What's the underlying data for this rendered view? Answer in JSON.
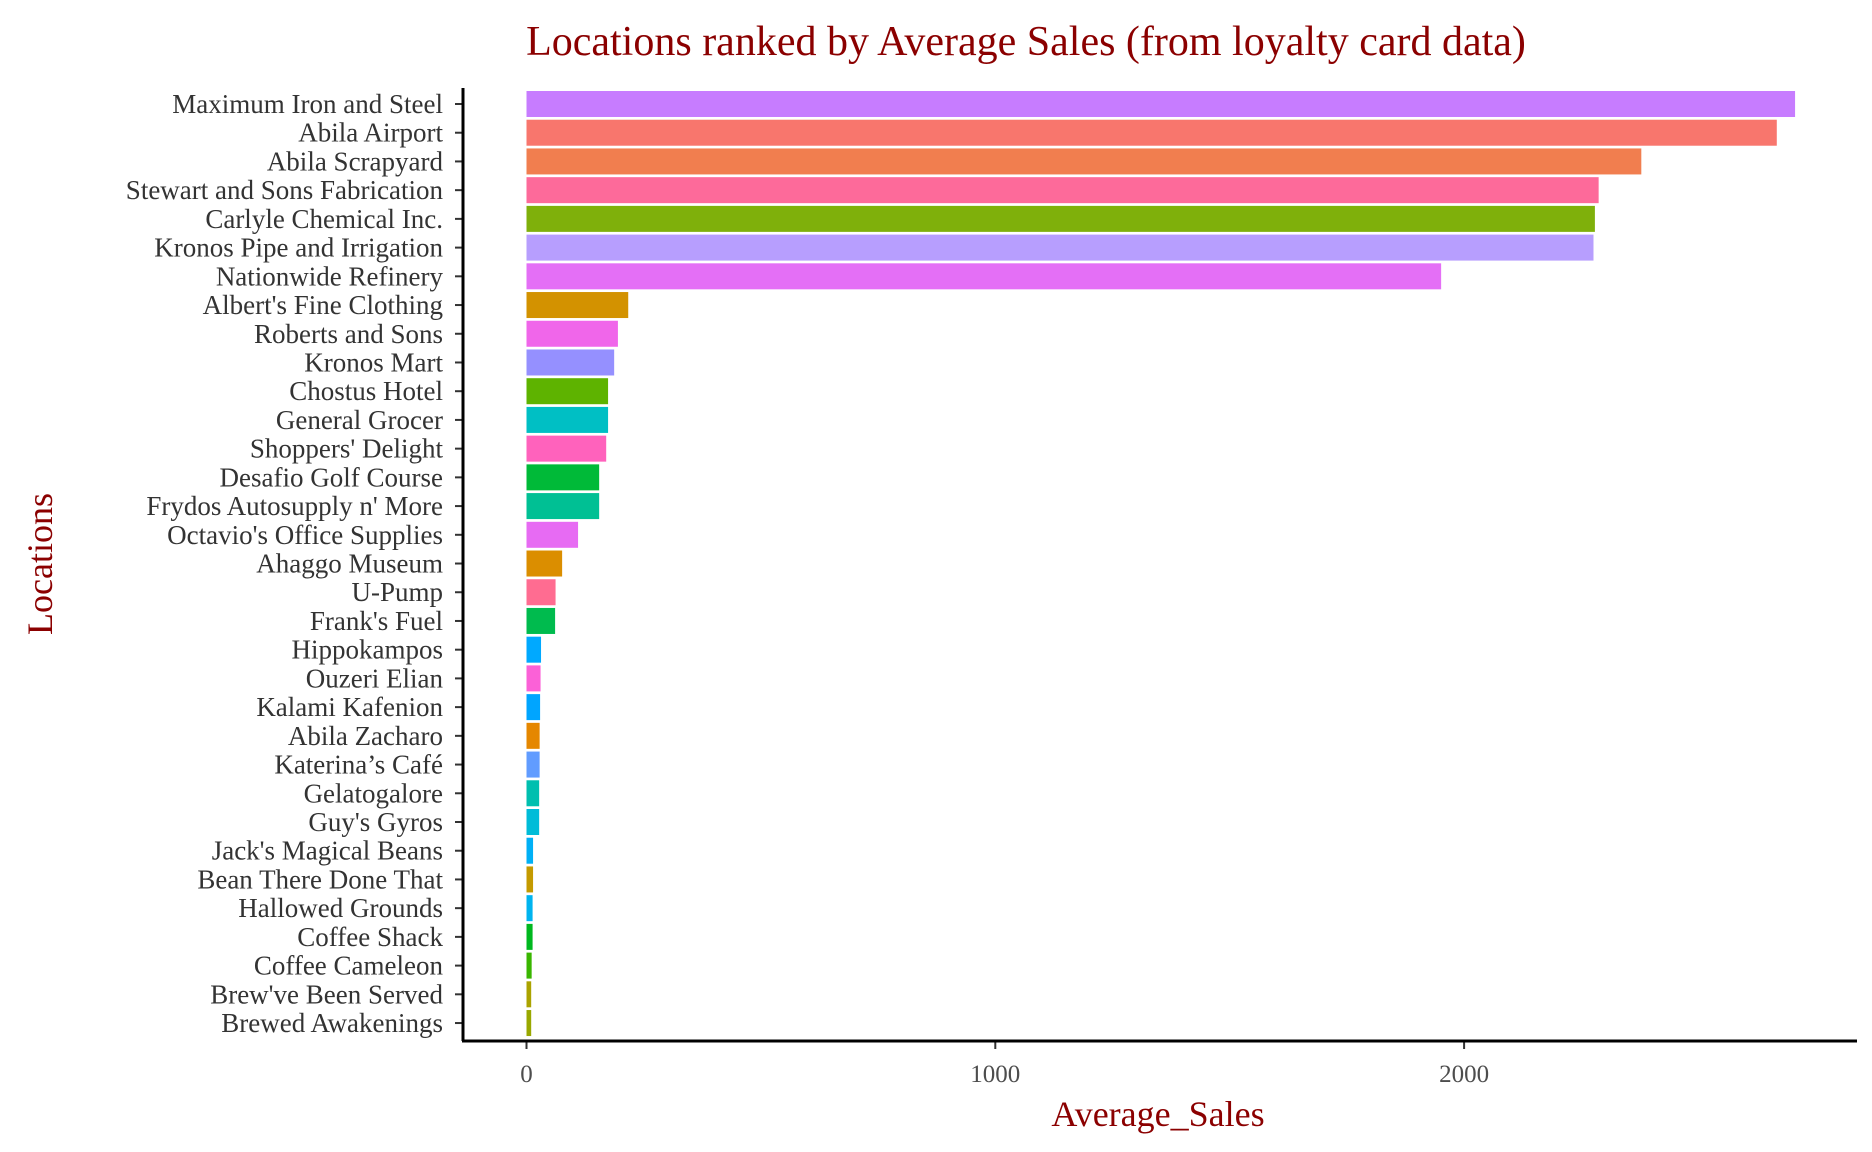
{
  "chart_data": {
    "type": "bar",
    "orientation": "horizontal",
    "title": "Locations ranked by Average Sales (from loyalty card data)",
    "xlabel": "Average_Sales",
    "ylabel": "Locations",
    "xlim": [
      -140,
      2830
    ],
    "xticks": [
      0,
      1000,
      2000
    ],
    "grid": false,
    "legend": "none",
    "categories": [
      "Maximum Iron and Steel",
      "Abila Airport",
      "Abila Scrapyard",
      "Stewart and Sons Fabrication",
      "Carlyle Chemical Inc.",
      "Kronos Pipe and Irrigation",
      "Nationwide Refinery",
      "Albert's Fine Clothing",
      "Roberts and Sons",
      "Kronos Mart",
      "Chostus Hotel",
      "General Grocer",
      "Shoppers' Delight",
      "Desafio Golf Course",
      "Frydos Autosupply n' More",
      "Octavio's Office Supplies",
      "Ahaggo Museum",
      "U-Pump",
      "Frank's Fuel",
      "Hippokampos",
      "Ouzeri Elian",
      "Kalami Kafenion",
      "Abila Zacharo",
      "Katerina’s Café",
      "Gelatogalore",
      "Guy's Gyros",
      "Jack's Magical Beans",
      "Bean There Done That",
      "Hallowed Grounds",
      "Coffee Shack",
      "Coffee Cameleon",
      "Brew've Been Served",
      "Brewed Awakenings"
    ],
    "values": [
      2706,
      2667,
      2378,
      2287,
      2279,
      2276,
      1951,
      217,
      195,
      187,
      174,
      174,
      170,
      155,
      155,
      110,
      76,
      62,
      61,
      31,
      30,
      29,
      28,
      28,
      27,
      27,
      14,
      14,
      13,
      13,
      11,
      10,
      10
    ],
    "colors": [
      "#c77cff",
      "#f8766d",
      "#f17e4f",
      "#fd6a9a",
      "#7fb00b",
      "#b79efe",
      "#e46ff6",
      "#d39200",
      "#f066ea",
      "#9590ff",
      "#5eb300",
      "#00bfc4",
      "#ff62bc",
      "#00ba38",
      "#00c094",
      "#e76bf3",
      "#db8e00",
      "#ff6c91",
      "#00bb4e",
      "#00a9ff",
      "#fb61d7",
      "#00a5ff",
      "#e58700",
      "#619cff",
      "#00bfaf",
      "#00bcd8",
      "#00b0f6",
      "#c49a00",
      "#00b4ef",
      "#00b81f",
      "#39b600",
      "#aba300",
      "#99a800"
    ]
  }
}
